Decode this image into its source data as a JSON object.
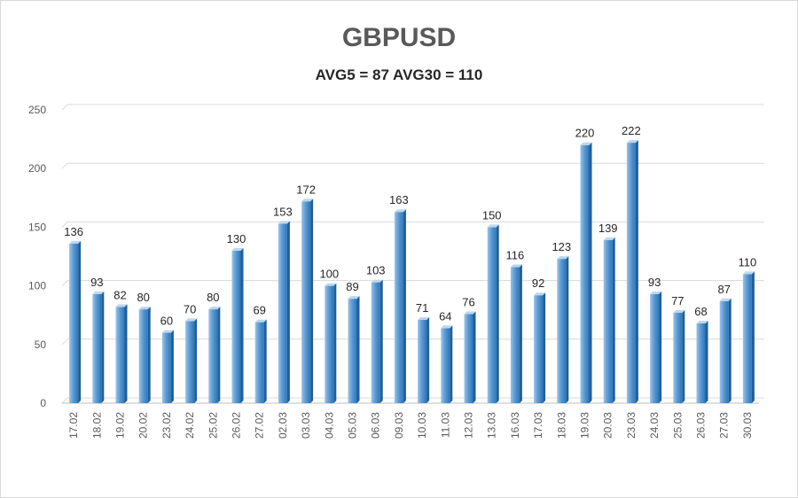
{
  "chart_data": {
    "type": "bar",
    "title": "GBPUSD",
    "subtitle": "AVG5 = 87 AVG30 = 110",
    "xlabel": "",
    "ylabel": "",
    "ylim": [
      0,
      250
    ],
    "yticks": [
      0,
      50,
      100,
      150,
      200,
      250
    ],
    "grid": true,
    "bar_color": "#5b9bd5",
    "bar_color_dark": "#2e75b6",
    "categories": [
      "17.02",
      "18.02",
      "19.02",
      "20.02",
      "23.02",
      "24.02",
      "25.02",
      "26.02",
      "27.02",
      "02.03",
      "03.03",
      "04.03",
      "05.03",
      "06.03",
      "09.03",
      "10.03",
      "11.03",
      "12.03",
      "13.03",
      "16.03",
      "17.03",
      "18.03",
      "19.03",
      "20.03",
      "23.03",
      "24.03",
      "25.03",
      "26.03",
      "27.03",
      "30.03"
    ],
    "values": [
      136,
      93,
      82,
      80,
      60,
      70,
      80,
      130,
      69,
      153,
      172,
      100,
      89,
      103,
      163,
      71,
      64,
      76,
      150,
      116,
      92,
      123,
      220,
      139,
      222,
      93,
      77,
      68,
      87,
      110
    ]
  }
}
